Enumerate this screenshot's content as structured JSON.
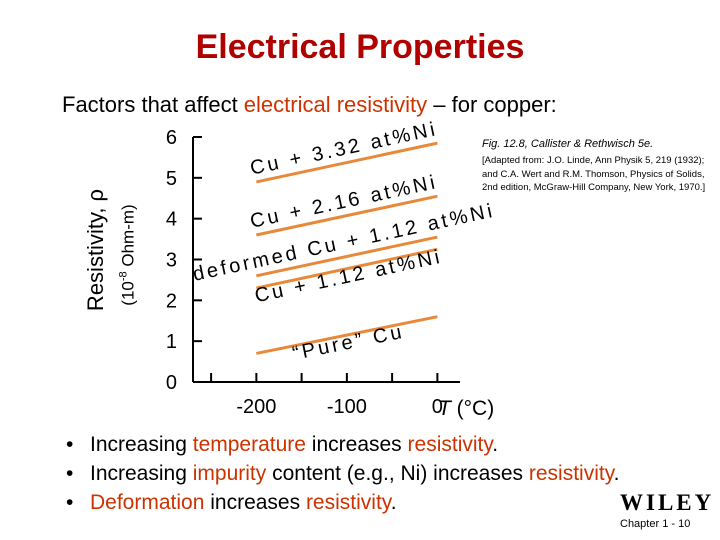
{
  "slide": {
    "title": "Electrical Properties",
    "subtitle_prefix": "Factors that affect ",
    "subtitle_highlight": "electrical resistivity",
    "subtitle_suffix": " – for copper:",
    "figure_credit": "Fig. 12.8, Callister & Rethwisch 5e.",
    "figure_adapted": "[Adapted from: J.O. Linde, Ann Physik 5, 219 (1932); and C.A. Wert and R.M. Thomson, Physics of Solids, 2nd edition, McGraw-Hill Company, New York, 1970.]",
    "bullets": [
      {
        "pre": "Increasing ",
        "hl1": "temperature",
        "mid": " increases ",
        "hl2": "resistivity",
        "post": "."
      },
      {
        "pre": "Increasing ",
        "hl1": "impurity",
        "mid": " content (e.g., Ni) increases ",
        "hl2": "resistivity",
        "post": "."
      },
      {
        "pre": "",
        "hl1": "Deformation",
        "mid": " increases ",
        "hl2": "resistivity",
        "post": "."
      }
    ],
    "bullet_symbol": "•",
    "logo": "WILEY",
    "footer": "Chapter 1 -  10",
    "highlight_color": "#cc3300",
    "title_color": "#b00000",
    "line_color": "#e8893a"
  },
  "chart_data": {
    "type": "line",
    "ylabel": "Resistivity, ρ",
    "yunit_prefix": "(10",
    "yunit_exp": "-8",
    "yunit_suffix": " Ohm-m)",
    "xlabel_symbol": "T",
    "xlabel_unit": " (°C)",
    "xlim": [
      -270,
      25
    ],
    "ylim": [
      0,
      6
    ],
    "xticks": [
      -200,
      -100,
      0
    ],
    "yticks": [
      0,
      1,
      2,
      3,
      4,
      5,
      6
    ],
    "series": [
      {
        "name": "Cu + 3.32 at%Ni",
        "points": [
          [
            -200,
            4.9
          ],
          [
            0,
            5.85
          ]
        ]
      },
      {
        "name": "Cu + 2.16 at%Ni",
        "points": [
          [
            -200,
            3.6
          ],
          [
            0,
            4.55
          ]
        ]
      },
      {
        "name": "deformed Cu + 1.12 at%Ni",
        "points": [
          [
            -200,
            2.6
          ],
          [
            0,
            3.55
          ]
        ]
      },
      {
        "name": "Cu + 1.12 at%Ni",
        "points": [
          [
            -200,
            2.3
          ],
          [
            0,
            3.25
          ]
        ]
      },
      {
        "name": "“Pure” Cu",
        "points": [
          [
            -200,
            0.7
          ],
          [
            0,
            1.6
          ]
        ]
      }
    ]
  }
}
